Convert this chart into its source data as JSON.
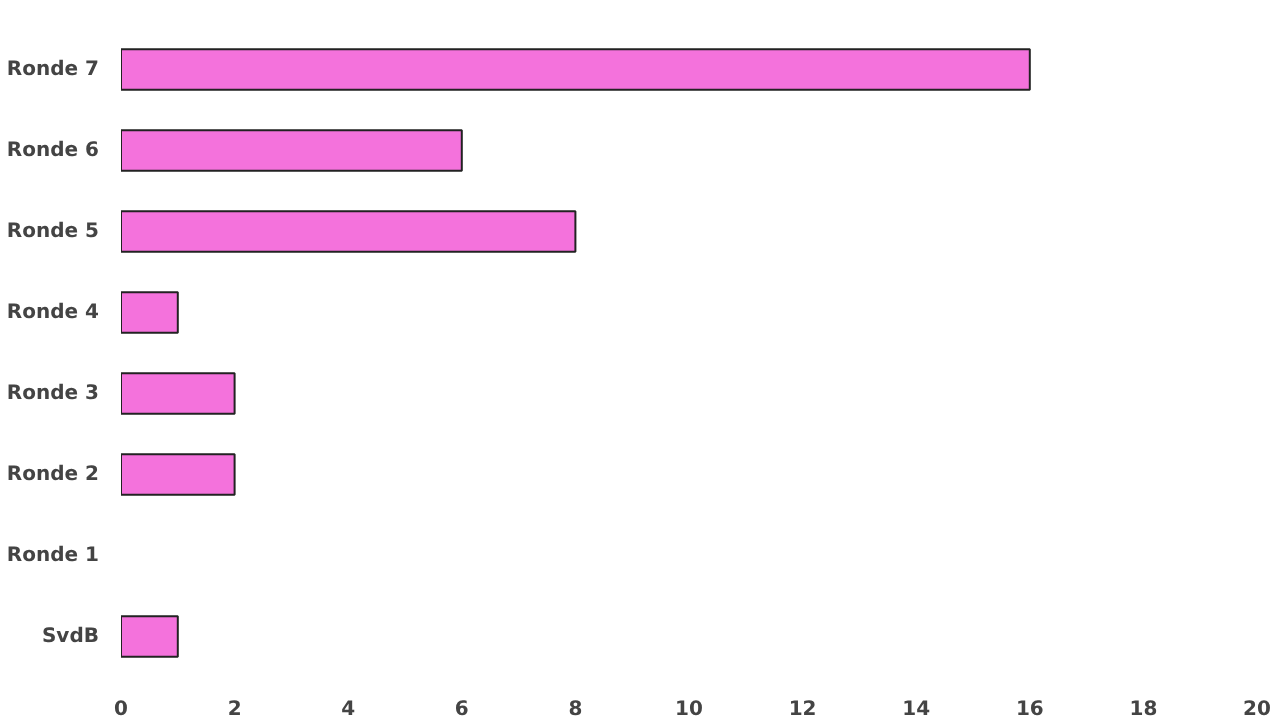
{
  "chart_data": {
    "type": "bar",
    "orientation": "horizontal",
    "categories": [
      "Ronde 7",
      "Ronde 6",
      "Ronde 5",
      "Ronde 4",
      "Ronde 3",
      "Ronde 2",
      "Ronde 1",
      "SvdB"
    ],
    "values": [
      16,
      6,
      8,
      1,
      2,
      2,
      0,
      1
    ],
    "color": "#f472dc",
    "xlim": [
      0,
      20
    ],
    "xticks": [
      0,
      2,
      4,
      6,
      8,
      10,
      12,
      14,
      16,
      18,
      20
    ],
    "grid": false
  }
}
